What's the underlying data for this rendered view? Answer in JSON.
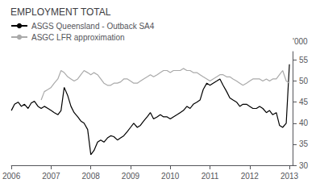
{
  "chart_data": {
    "type": "line",
    "title": "EMPLOYMENT TOTAL",
    "ylabel": "'000",
    "x": [
      2006.0,
      2006.08,
      2006.17,
      2006.25,
      2006.33,
      2006.42,
      2006.5,
      2006.58,
      2006.67,
      2006.75,
      2006.83,
      2006.92,
      2007.0,
      2007.08,
      2007.17,
      2007.25,
      2007.33,
      2007.42,
      2007.5,
      2007.58,
      2007.67,
      2007.75,
      2007.83,
      2007.92,
      2008.0,
      2008.08,
      2008.17,
      2008.25,
      2008.33,
      2008.42,
      2008.5,
      2008.58,
      2008.67,
      2008.75,
      2008.83,
      2008.92,
      2009.0,
      2009.08,
      2009.17,
      2009.25,
      2009.33,
      2009.42,
      2009.5,
      2009.58,
      2009.67,
      2009.75,
      2009.83,
      2009.92,
      2010.0,
      2010.08,
      2010.17,
      2010.25,
      2010.33,
      2010.42,
      2010.5,
      2010.58,
      2010.67,
      2010.75,
      2010.83,
      2010.92,
      2011.0,
      2011.08,
      2011.17,
      2011.25,
      2011.33,
      2011.42,
      2011.5,
      2011.58,
      2011.67,
      2011.75,
      2011.83,
      2011.92,
      2012.0,
      2012.08,
      2012.17,
      2012.25,
      2012.33,
      2012.42,
      2012.5,
      2012.58,
      2012.67,
      2012.75,
      2012.83,
      2012.92,
      2013.0
    ],
    "series": [
      {
        "name": "ASGS Queensland - Outback SA4",
        "color": "#000000",
        "values": [
          43.0,
          44.5,
          45.0,
          44.0,
          44.5,
          43.5,
          44.8,
          45.2,
          44.0,
          43.5,
          44.0,
          43.5,
          43.0,
          42.5,
          42.0,
          43.0,
          48.5,
          46.5,
          44.0,
          42.5,
          41.5,
          40.5,
          40.0,
          38.5,
          32.5,
          33.5,
          35.5,
          36.0,
          35.5,
          36.5,
          37.0,
          36.8,
          36.0,
          36.5,
          37.0,
          38.0,
          39.0,
          40.0,
          39.0,
          39.5,
          40.5,
          41.5,
          42.5,
          41.0,
          41.5,
          42.0,
          41.5,
          41.5,
          41.0,
          41.5,
          42.0,
          42.5,
          43.0,
          44.0,
          43.5,
          44.5,
          45.0,
          45.5,
          48.0,
          49.5,
          49.0,
          49.5,
          50.0,
          50.5,
          49.0,
          47.5,
          46.0,
          45.5,
          45.0,
          44.0,
          44.5,
          44.5,
          44.0,
          43.5,
          43.5,
          44.0,
          43.5,
          42.5,
          43.0,
          42.0,
          42.5,
          39.5,
          39.0,
          40.0,
          54.0
        ]
      },
      {
        "name": "ASGC LFR approximation",
        "color": "#aaaaaa",
        "values": [
          null,
          null,
          null,
          null,
          null,
          null,
          null,
          null,
          null,
          45.5,
          47.5,
          48.0,
          48.5,
          49.5,
          50.5,
          52.5,
          52.0,
          51.0,
          50.5,
          50.0,
          50.5,
          51.5,
          52.5,
          52.0,
          51.5,
          52.0,
          51.5,
          50.5,
          49.5,
          49.0,
          49.0,
          49.5,
          49.5,
          49.8,
          50.5,
          50.5,
          50.0,
          49.5,
          49.5,
          50.0,
          50.5,
          51.0,
          51.5,
          51.0,
          51.5,
          52.0,
          52.5,
          52.5,
          52.0,
          52.5,
          52.5,
          52.5,
          53.0,
          52.5,
          52.5,
          52.0,
          52.0,
          51.5,
          51.0,
          50.5,
          50.0,
          50.5,
          51.0,
          51.5,
          51.5,
          51.0,
          51.0,
          50.5,
          50.0,
          49.5,
          49.0,
          49.5,
          50.0,
          50.5,
          50.5,
          50.5,
          50.0,
          50.5,
          50.0,
          50.5,
          50.5,
          51.5,
          52.5,
          50.0,
          49.5
        ]
      }
    ],
    "xlim": [
      2006.0,
      2013.08
    ],
    "xticks": [
      2006,
      2007,
      2008,
      2009,
      2010,
      2011,
      2012,
      2013
    ],
    "ylim": [
      30,
      57
    ],
    "yticks": [
      30,
      35,
      40,
      45,
      50,
      55
    ],
    "grid": false,
    "legend": "upper left"
  }
}
